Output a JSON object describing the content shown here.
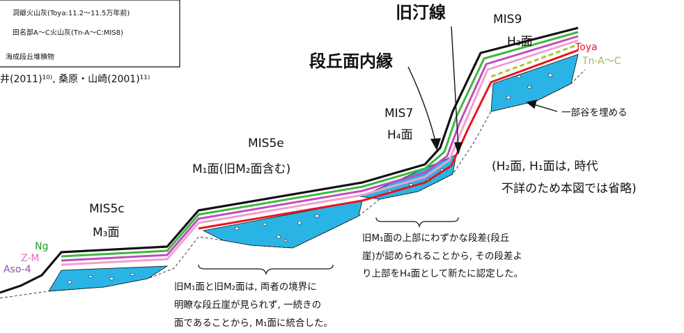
{
  "legend": {
    "items": [
      {
        "label": "洞爺火山灰(Toya:11.2～11.5万年前)"
      },
      {
        "label": "田名部A～C火山灰(Tn-A～C:MIS8)"
      },
      {
        "label": "海成段丘堆積物"
      }
    ],
    "citation": "井(2011)¹⁰⁾, 桑原・山崎(2001)¹¹⁾"
  },
  "callouts": {
    "old_shoreline": "旧汀線",
    "terrace_inner_edge": "段丘面内縁",
    "valley_fill": "一部谷を埋める"
  },
  "terraces": {
    "mis9": {
      "stage": "MIS9",
      "surface": "H₃面"
    },
    "mis7": {
      "stage": "MIS7",
      "surface": "H₄面"
    },
    "mis5e": {
      "stage": "MIS5e",
      "surface": "M₁面(旧M₂面含む)"
    },
    "mis5c": {
      "stage": "MIS5c",
      "surface": "M₃面"
    }
  },
  "tephra_labels": {
    "toya": "Toya",
    "tna_c": "Tn-A～C",
    "ng": "Ng",
    "zm": "Z-M",
    "aso4": "Aso-4"
  },
  "omission_note": {
    "line1": "(H₂面, H₁面は, 時代",
    "line2": "不詳のため本図では省略)"
  },
  "notes": {
    "h4_note": {
      "line1": "旧M₁面の上部にわずかな段差(段丘",
      "line2": "崖)が認められることから, その段差よ",
      "line3": "り上部をH₄面として新たに認定した。"
    },
    "m1_note": {
      "line1": "旧M₁面と旧M₂面は, 両者の境界に",
      "line2": "明瞭な段丘崖が見られず, 一続きの",
      "line3": "面であることから, M₁面に統合した。"
    }
  },
  "colors": {
    "surface": "#111111",
    "green_ng": "#3db83d",
    "purple_zm": "#c04cc0",
    "pink_aso4": "#f0a0d0",
    "red_toya": "#e8141e",
    "tn_dashed": "#a8c83c",
    "deposit": "#2ab4e6",
    "toya_text": "#e8141e",
    "tn_text": "#9cc03c",
    "ng_text": "#28a028",
    "zm_text": "#e070c0",
    "aso4_text": "#9050b0"
  }
}
